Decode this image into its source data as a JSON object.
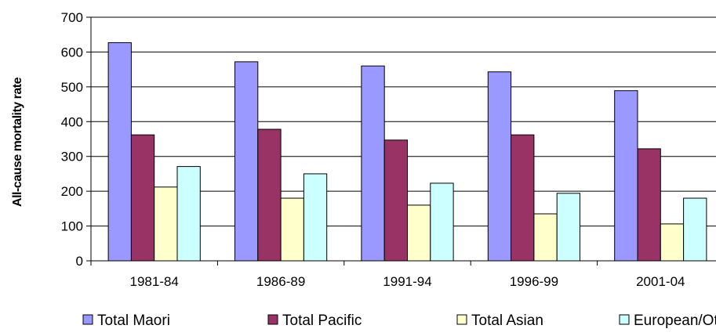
{
  "chart_data": {
    "type": "bar",
    "title": "",
    "xlabel": "",
    "ylabel": "All-cause mortality rate",
    "ylim": [
      0,
      700
    ],
    "yticks": [
      0,
      100,
      200,
      300,
      400,
      500,
      600,
      700
    ],
    "grid": true,
    "legend_position": "bottom",
    "categories": [
      "1981-84",
      "1986-89",
      "1991-94",
      "1996-99",
      "2001-04"
    ],
    "series": [
      {
        "name": "Total Maori",
        "color": "#9999ff",
        "values": [
          627,
          572,
          560,
          543,
          489
        ]
      },
      {
        "name": "Total Pacific",
        "color": "#993366",
        "values": [
          362,
          378,
          347,
          362,
          322
        ]
      },
      {
        "name": "Total Asian",
        "color": "#ffffcc",
        "values": [
          212,
          180,
          160,
          135,
          106
        ]
      },
      {
        "name": "European/Other",
        "color": "#ccffff",
        "values": [
          271,
          250,
          223,
          194,
          180
        ]
      }
    ]
  }
}
